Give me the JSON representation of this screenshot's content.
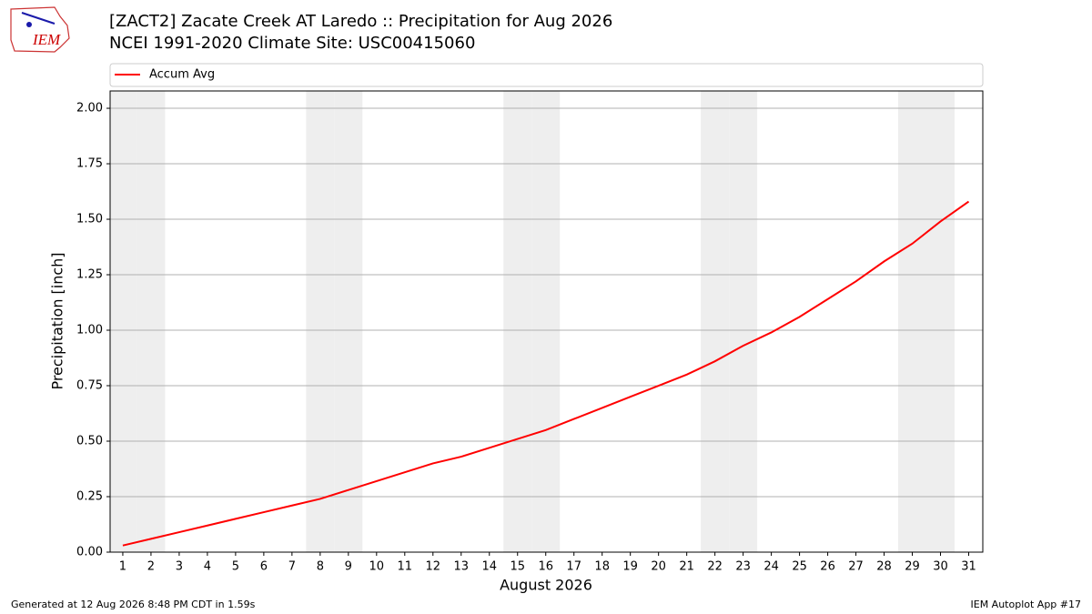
{
  "chart_data": {
    "type": "line",
    "title": "[ZACT2] Zacate Creek  AT Laredo :: Precipitation for Aug 2026",
    "subtitle": "NCEI 1991-2020 Climate Site: USC00415060",
    "logo_text": "IEM",
    "xlabel": "August 2026",
    "ylabel": "Precipitation [inch]",
    "x": [
      1,
      2,
      3,
      4,
      5,
      6,
      7,
      8,
      9,
      10,
      11,
      12,
      13,
      14,
      15,
      16,
      17,
      18,
      19,
      20,
      21,
      22,
      23,
      24,
      25,
      26,
      27,
      28,
      29,
      30,
      31
    ],
    "series": [
      {
        "name": "Accum Avg",
        "color": "#ff0000",
        "values": [
          0.03,
          0.06,
          0.09,
          0.12,
          0.15,
          0.18,
          0.21,
          0.24,
          0.28,
          0.32,
          0.36,
          0.4,
          0.43,
          0.47,
          0.51,
          0.55,
          0.6,
          0.65,
          0.7,
          0.75,
          0.8,
          0.86,
          0.93,
          0.99,
          1.06,
          1.14,
          1.22,
          1.31,
          1.39,
          1.49,
          1.58
        ]
      }
    ],
    "shaded_days": [
      1,
      2,
      8,
      9,
      15,
      16,
      22,
      23,
      29,
      30
    ],
    "shade_color": "#eeeeee",
    "xlim": [
      0.55,
      31.5
    ],
    "xticks": [
      1,
      2,
      3,
      4,
      5,
      6,
      7,
      8,
      9,
      10,
      11,
      12,
      13,
      14,
      15,
      16,
      17,
      18,
      19,
      20,
      21,
      22,
      23,
      24,
      25,
      26,
      27,
      28,
      29,
      30,
      31
    ],
    "ylim": [
      0,
      2.078
    ],
    "yticks": [
      {
        "value": 0,
        "label": "0.00"
      },
      {
        "value": 0.25,
        "label": "0.25"
      },
      {
        "value": 0.5,
        "label": "0.50"
      },
      {
        "value": 0.75,
        "label": "0.75"
      },
      {
        "value": 1,
        "label": "1.00"
      },
      {
        "value": 1.25,
        "label": "1.25"
      },
      {
        "value": 1.5,
        "label": "1.50"
      },
      {
        "value": 1.75,
        "label": "1.75"
      },
      {
        "value": 2,
        "label": "2.00"
      }
    ],
    "grid": true,
    "legend": "top",
    "footer_left": "Generated at 12 Aug 2026 8:48 PM CDT in 1.59s",
    "footer_right": "IEM Autoplot App #17"
  }
}
